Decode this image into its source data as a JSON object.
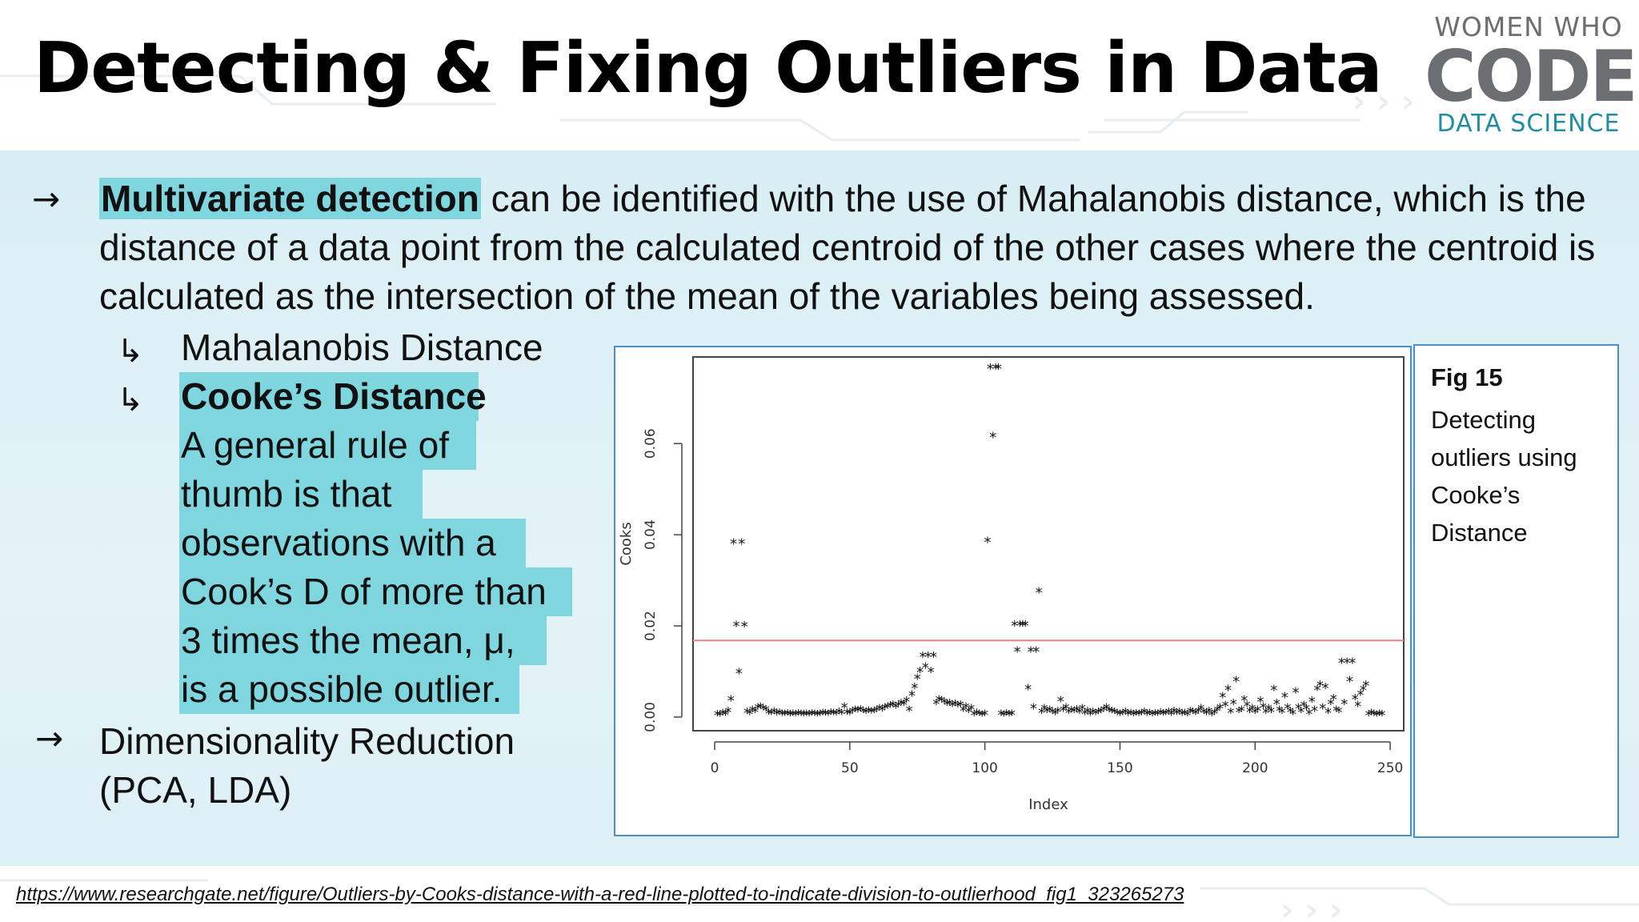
{
  "header": {
    "title": "Detecting & Fixing Outliers in Data",
    "logo": {
      "line1": "WOMEN WHO",
      "line2": "CODE",
      "line3": "DATA SCIENCE"
    }
  },
  "bullets": {
    "first": {
      "highlight": "Multivariate detection",
      "rest": " can be identified with the use of Mahalanobis distance, which is the distance of a data point from the calculated centroid of the other cases where the centroid is calculated as the intersection of the mean of the variables being assessed."
    },
    "sub1": "Mahalanobis Distance",
    "sub2": "Cooke’s Distance",
    "rule_lines": [
      "A general rule of",
      "thumb is that",
      "observations with a",
      "Cook’s D of more than",
      "3 times the mean, μ,",
      "is a possible outlier."
    ],
    "second_line1": "Dimensionality Reduction",
    "second_line2": "(PCA, LDA)"
  },
  "caption": {
    "title": "Fig 15",
    "body": "Detecting outliers using Cooke’s Distance"
  },
  "footer": {
    "url": "https://www.researchgate.net/figure/Outliers-by-Cooks-distance-with-a-red-line-plotted-to-indicate-division-to-outlierhood_fig1_323265273"
  },
  "colors": {
    "highlight": "#7fd6df",
    "band": "#d8eef4",
    "threshold_line": "#f08080",
    "frame": "#4a90c8"
  },
  "chart_data": {
    "type": "scatter",
    "title": "",
    "xlabel": "Index",
    "ylabel": "Cooks",
    "xlim": [
      -8,
      255
    ],
    "ylim": [
      -0.003,
      0.079
    ],
    "xticks": [
      0,
      50,
      100,
      150,
      200,
      250
    ],
    "yticks": [
      0.0,
      0.02,
      0.04,
      0.06
    ],
    "ytick_labels": [
      "0.00",
      "0.02",
      "0.04",
      "0.06"
    ],
    "marker": "*",
    "threshold": 0.0168,
    "threshold_color": "#f08080",
    "grid": false,
    "points": [
      [
        1,
        0.0005
      ],
      [
        2,
        0.0004
      ],
      [
        3,
        0.0008
      ],
      [
        4,
        0.0006
      ],
      [
        5,
        0.0012
      ],
      [
        6,
        0.0038
      ],
      [
        7,
        0.0382
      ],
      [
        8,
        0.0201
      ],
      [
        9,
        0.0097
      ],
      [
        10,
        0.0382
      ],
      [
        11,
        0.02
      ],
      [
        12,
        0.001
      ],
      [
        13,
        0.0008
      ],
      [
        14,
        0.0015
      ],
      [
        15,
        0.0012
      ],
      [
        16,
        0.002
      ],
      [
        17,
        0.0022
      ],
      [
        18,
        0.0018
      ],
      [
        19,
        0.0016
      ],
      [
        20,
        0.0009
      ],
      [
        21,
        0.0008
      ],
      [
        22,
        0.0011
      ],
      [
        23,
        0.0007
      ],
      [
        24,
        0.0009
      ],
      [
        25,
        0.0006
      ],
      [
        26,
        0.0006
      ],
      [
        27,
        0.0007
      ],
      [
        28,
        0.0005
      ],
      [
        29,
        0.0006
      ],
      [
        30,
        0.0005
      ],
      [
        31,
        0.0007
      ],
      [
        32,
        0.0006
      ],
      [
        33,
        0.0005
      ],
      [
        34,
        0.0006
      ],
      [
        35,
        0.0005
      ],
      [
        36,
        0.0007
      ],
      [
        37,
        0.0006
      ],
      [
        38,
        0.0005
      ],
      [
        39,
        0.0006
      ],
      [
        40,
        0.0008
      ],
      [
        41,
        0.0007
      ],
      [
        42,
        0.0006
      ],
      [
        43,
        0.0009
      ],
      [
        44,
        0.0008
      ],
      [
        45,
        0.0007
      ],
      [
        46,
        0.001
      ],
      [
        47,
        0.0008
      ],
      [
        48,
        0.0022
      ],
      [
        49,
        0.0009
      ],
      [
        50,
        0.0008
      ],
      [
        51,
        0.0012
      ],
      [
        52,
        0.0015
      ],
      [
        53,
        0.0014
      ],
      [
        54,
        0.0016
      ],
      [
        55,
        0.0012
      ],
      [
        56,
        0.001
      ],
      [
        57,
        0.0013
      ],
      [
        58,
        0.0011
      ],
      [
        59,
        0.0012
      ],
      [
        60,
        0.0015
      ],
      [
        61,
        0.0018
      ],
      [
        62,
        0.0016
      ],
      [
        63,
        0.002
      ],
      [
        64,
        0.0022
      ],
      [
        65,
        0.0024
      ],
      [
        66,
        0.0026
      ],
      [
        67,
        0.0022
      ],
      [
        68,
        0.0025
      ],
      [
        69,
        0.003
      ],
      [
        70,
        0.0028
      ],
      [
        71,
        0.0035
      ],
      [
        72,
        0.0015
      ],
      [
        73,
        0.0048
      ],
      [
        74,
        0.0065
      ],
      [
        75,
        0.0085
      ],
      [
        76,
        0.01
      ],
      [
        77,
        0.0133
      ],
      [
        78,
        0.011
      ],
      [
        79,
        0.0133
      ],
      [
        80,
        0.01
      ],
      [
        81,
        0.0133
      ],
      [
        82,
        0.003
      ],
      [
        83,
        0.0038
      ],
      [
        84,
        0.0036
      ],
      [
        85,
        0.0032
      ],
      [
        86,
        0.0028
      ],
      [
        87,
        0.003
      ],
      [
        88,
        0.0025
      ],
      [
        89,
        0.0028
      ],
      [
        90,
        0.0024
      ],
      [
        91,
        0.0026
      ],
      [
        92,
        0.0015
      ],
      [
        93,
        0.0022
      ],
      [
        94,
        0.0012
      ],
      [
        95,
        0.0018
      ],
      [
        96,
        0.0005
      ],
      [
        97,
        0.0008
      ],
      [
        98,
        0.0006
      ],
      [
        99,
        0.0004
      ],
      [
        100,
        0.0006
      ],
      [
        101,
        0.0385
      ],
      [
        102,
        0.0765
      ],
      [
        103,
        0.0615
      ],
      [
        104,
        0.0765
      ],
      [
        105,
        0.0765
      ],
      [
        106,
        0.0006
      ],
      [
        107,
        0.0004
      ],
      [
        108,
        0.0007
      ],
      [
        109,
        0.0005
      ],
      [
        110,
        0.0006
      ],
      [
        111,
        0.0202
      ],
      [
        112,
        0.0145
      ],
      [
        113,
        0.0202
      ],
      [
        114,
        0.0202
      ],
      [
        115,
        0.0202
      ],
      [
        116,
        0.0062
      ],
      [
        117,
        0.0145
      ],
      [
        118,
        0.002
      ],
      [
        119,
        0.0145
      ],
      [
        120,
        0.0275
      ],
      [
        121,
        0.001
      ],
      [
        122,
        0.0018
      ],
      [
        123,
        0.0012
      ],
      [
        124,
        0.0015
      ],
      [
        125,
        0.001
      ],
      [
        126,
        0.0008
      ],
      [
        127,
        0.0012
      ],
      [
        128,
        0.0036
      ],
      [
        129,
        0.0015
      ],
      [
        130,
        0.002
      ],
      [
        131,
        0.001
      ],
      [
        132,
        0.0014
      ],
      [
        133,
        0.0012
      ],
      [
        134,
        0.0016
      ],
      [
        135,
        0.001
      ],
      [
        136,
        0.0018
      ],
      [
        137,
        0.0008
      ],
      [
        138,
        0.0012
      ],
      [
        139,
        0.0006
      ],
      [
        140,
        0.001
      ],
      [
        141,
        0.0008
      ],
      [
        142,
        0.001
      ],
      [
        143,
        0.0012
      ],
      [
        144,
        0.0016
      ],
      [
        145,
        0.002
      ],
      [
        146,
        0.0014
      ],
      [
        147,
        0.0012
      ],
      [
        148,
        0.001
      ],
      [
        149,
        0.0008
      ],
      [
        150,
        0.0006
      ],
      [
        151,
        0.0008
      ],
      [
        152,
        0.001
      ],
      [
        153,
        0.0006
      ],
      [
        154,
        0.0008
      ],
      [
        155,
        0.0005
      ],
      [
        156,
        0.0007
      ],
      [
        157,
        0.0006
      ],
      [
        158,
        0.0008
      ],
      [
        159,
        0.001
      ],
      [
        160,
        0.0006
      ],
      [
        161,
        0.0008
      ],
      [
        162,
        0.0005
      ],
      [
        163,
        0.0007
      ],
      [
        164,
        0.0006
      ],
      [
        165,
        0.0009
      ],
      [
        166,
        0.0007
      ],
      [
        167,
        0.0008
      ],
      [
        168,
        0.001
      ],
      [
        169,
        0.0006
      ],
      [
        170,
        0.0012
      ],
      [
        171,
        0.0008
      ],
      [
        172,
        0.001
      ],
      [
        173,
        0.0006
      ],
      [
        174,
        0.0008
      ],
      [
        175,
        0.0005
      ],
      [
        176,
        0.0012
      ],
      [
        177,
        0.001
      ],
      [
        178,
        0.0008
      ],
      [
        179,
        0.0012
      ],
      [
        180,
        0.0018
      ],
      [
        181,
        0.001
      ],
      [
        182,
        0.0008
      ],
      [
        183,
        0.0012
      ],
      [
        184,
        0.0005
      ],
      [
        185,
        0.0009
      ],
      [
        186,
        0.0015
      ],
      [
        187,
        0.002
      ],
      [
        188,
        0.0045
      ],
      [
        189,
        0.0025
      ],
      [
        190,
        0.006
      ],
      [
        191,
        0.001
      ],
      [
        192,
        0.003
      ],
      [
        193,
        0.008
      ],
      [
        194,
        0.0012
      ],
      [
        195,
        0.0015
      ],
      [
        196,
        0.0038
      ],
      [
        197,
        0.0025
      ],
      [
        198,
        0.0012
      ],
      [
        199,
        0.0018
      ],
      [
        200,
        0.001
      ],
      [
        201,
        0.0015
      ],
      [
        202,
        0.0035
      ],
      [
        203,
        0.0022
      ],
      [
        204,
        0.001
      ],
      [
        205,
        0.0018
      ],
      [
        206,
        0.0012
      ],
      [
        207,
        0.006
      ],
      [
        208,
        0.003
      ],
      [
        209,
        0.0015
      ],
      [
        210,
        0.001
      ],
      [
        211,
        0.0045
      ],
      [
        212,
        0.002
      ],
      [
        213,
        0.0012
      ],
      [
        214,
        0.0008
      ],
      [
        215,
        0.0055
      ],
      [
        216,
        0.002
      ],
      [
        217,
        0.0012
      ],
      [
        218,
        0.0025
      ],
      [
        219,
        0.0018
      ],
      [
        220,
        0.0008
      ],
      [
        221,
        0.0035
      ],
      [
        222,
        0.0015
      ],
      [
        223,
        0.006
      ],
      [
        224,
        0.007
      ],
      [
        225,
        0.002
      ],
      [
        226,
        0.0065
      ],
      [
        227,
        0.001
      ],
      [
        228,
        0.003
      ],
      [
        229,
        0.004
      ],
      [
        230,
        0.0015
      ],
      [
        231,
        0.0012
      ],
      [
        232,
        0.012
      ],
      [
        233,
        0.003
      ],
      [
        234,
        0.012
      ],
      [
        235,
        0.008
      ],
      [
        236,
        0.012
      ],
      [
        237,
        0.004
      ],
      [
        238,
        0.0025
      ],
      [
        239,
        0.005
      ],
      [
        240,
        0.006
      ],
      [
        241,
        0.007
      ],
      [
        242,
        0.0005
      ],
      [
        243,
        0.0008
      ],
      [
        244,
        0.0006
      ],
      [
        245,
        0.0004
      ],
      [
        246,
        0.0006
      ],
      [
        247,
        0.0005
      ]
    ]
  }
}
